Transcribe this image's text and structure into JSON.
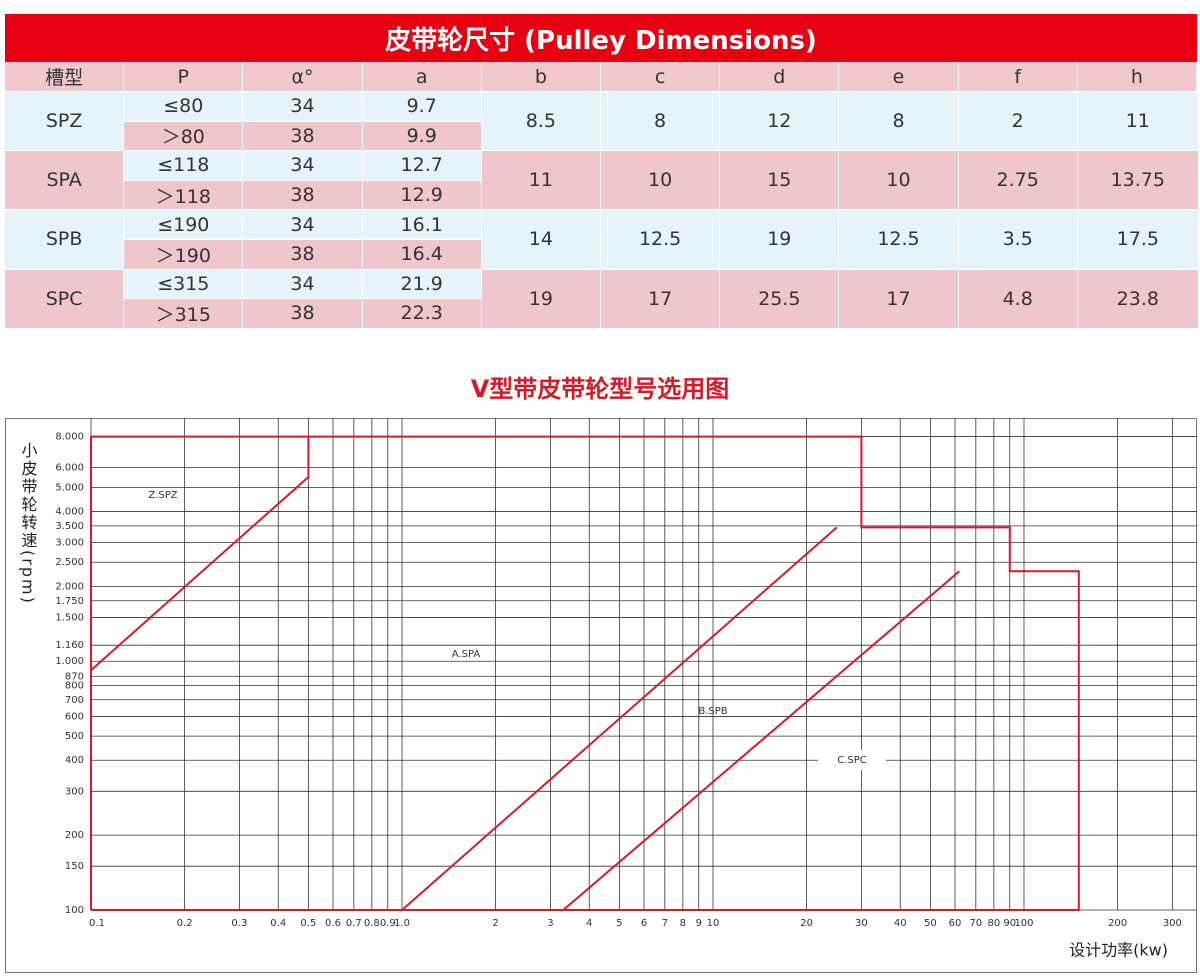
{
  "table": {
    "title": "皮带轮尺寸 (Pulley Dimensions)",
    "header": [
      "槽型",
      "P",
      "α°",
      "a",
      "b",
      "c",
      "d",
      "e",
      "f",
      "h"
    ],
    "groups": [
      {
        "name": "SPZ",
        "rows": [
          [
            "≤80",
            34,
            9.7
          ],
          [
            "＞80",
            38,
            9.9
          ]
        ],
        "shared": [
          8.5,
          8,
          12,
          8,
          2,
          11
        ]
      },
      {
        "name": "SPA",
        "rows": [
          [
            "≤118",
            34,
            12.7
          ],
          [
            "＞118",
            38,
            12.9
          ]
        ],
        "shared": [
          11,
          10,
          15,
          10,
          2.75,
          13.75
        ]
      },
      {
        "name": "SPB",
        "rows": [
          [
            "≤190",
            34,
            16.1
          ],
          [
            "＞190",
            38,
            16.4
          ]
        ],
        "shared": [
          14,
          12.5,
          19,
          12.5,
          3.5,
          17.5
        ]
      },
      {
        "name": "SPC",
        "rows": [
          [
            "≤315",
            34,
            21.9
          ],
          [
            "＞315",
            38,
            22.3
          ]
        ],
        "shared": [
          19,
          17,
          25.5,
          17,
          4.8,
          23.8
        ]
      }
    ]
  },
  "chart_data": {
    "type": "line",
    "title": "V型带皮带轮型号选用图",
    "y_label": "小皮带轮转速(rpm)",
    "x_label": "设计功率(kw)",
    "log_x": true,
    "log_y": true,
    "grid": true,
    "color": "#d7192a",
    "xlim": [
      0.1,
      360
    ],
    "ylim": [
      100,
      9500
    ],
    "xticks": [
      0.1,
      0.2,
      0.3,
      0.4,
      0.5,
      0.6,
      0.7,
      0.8,
      0.9,
      {
        "value": 1,
        "label": "1.0"
      },
      2,
      3,
      4,
      5,
      6,
      7,
      8,
      9,
      10,
      20,
      30,
      40,
      50,
      60,
      70,
      80,
      90,
      100,
      200,
      300
    ],
    "yticks": [
      100,
      150,
      200,
      300,
      400,
      500,
      600,
      700,
      800,
      870,
      {
        "value": 1000,
        "label": "1.000"
      },
      {
        "value": 1160,
        "label": "1.160"
      },
      {
        "value": 1500,
        "label": "1.500"
      },
      {
        "value": 1750,
        "label": "1.750"
      },
      {
        "value": 2000,
        "label": "2.000"
      },
      {
        "value": 2500,
        "label": "2.500"
      },
      {
        "value": 3000,
        "label": "3.000"
      },
      {
        "value": 3500,
        "label": "3.500"
      },
      {
        "value": 4000,
        "label": "4.000"
      },
      {
        "value": 5000,
        "label": "5.000"
      },
      {
        "value": 6000,
        "label": "6.000"
      },
      {
        "value": 8000,
        "label": "8.000"
      }
    ],
    "lines": [
      {
        "x": [
          0.1,
          0.1,
          30,
          30,
          90,
          90,
          150,
          150,
          0.1
        ],
        "y": [
          100,
          8000,
          8000,
          3450,
          3450,
          2300,
          2300,
          100,
          100
        ]
      },
      {
        "x": [
          0.1,
          0.5,
          0.5
        ],
        "y": [
          920,
          5500,
          8000
        ]
      },
      {
        "x": [
          1,
          25
        ],
        "y": [
          100,
          3450
        ]
      },
      {
        "x": [
          3.3,
          62
        ],
        "y": [
          100,
          2300
        ]
      }
    ],
    "region_labels": [
      "Z.SPZ",
      "A.SPA",
      "B.SPB",
      "C.SPC"
    ]
  }
}
